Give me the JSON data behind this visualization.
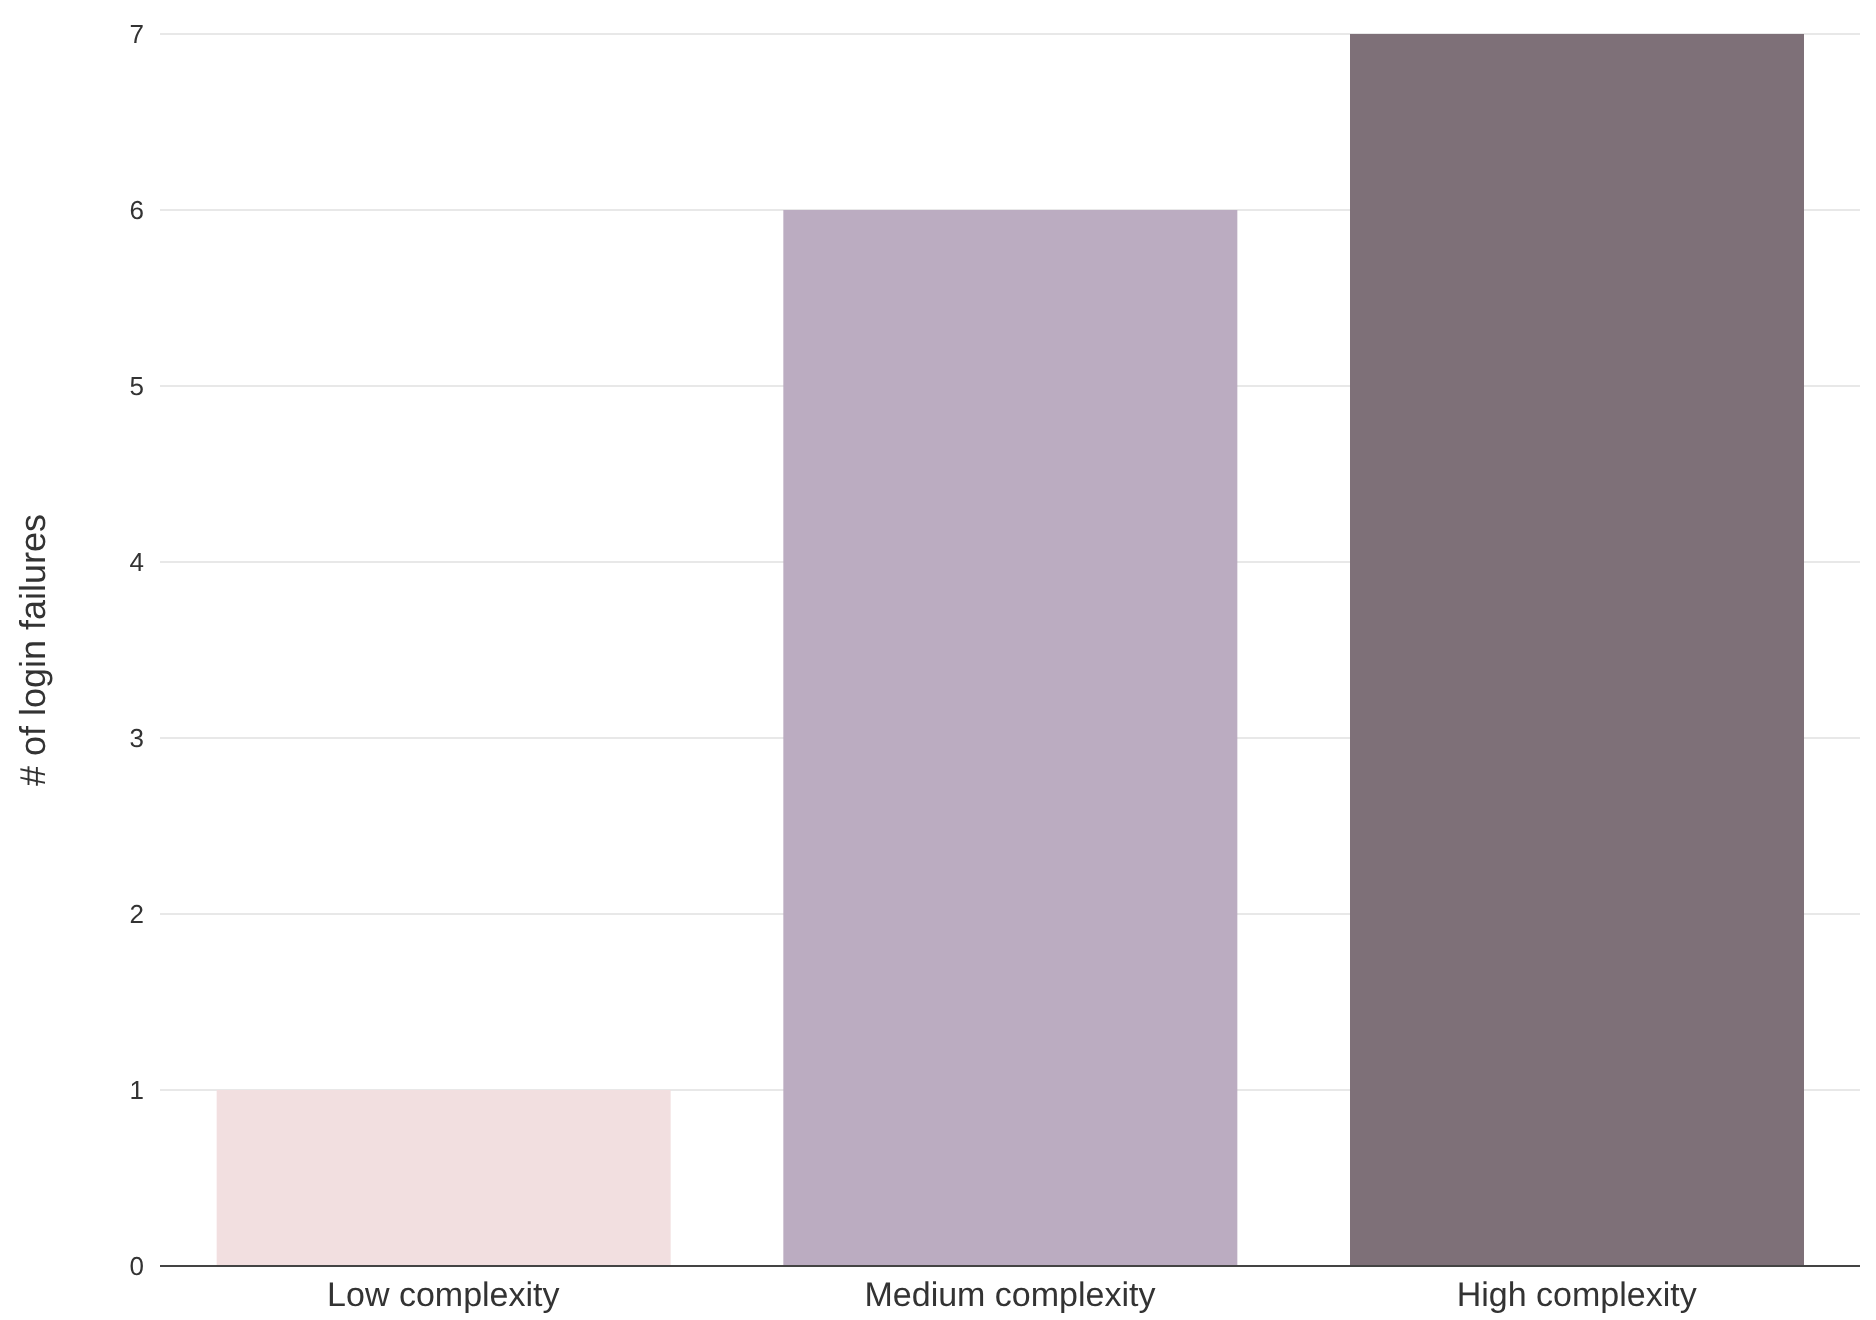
{
  "chart_data": {
    "type": "bar",
    "ylabel": "# of login failures",
    "categories": [
      "Low complexity",
      "Medium complexity",
      "High complexity"
    ],
    "values": [
      1,
      6,
      7
    ],
    "colors": [
      "#f2dfe0",
      "#bbacc1",
      "#7e7078"
    ],
    "ylim": [
      0,
      7
    ],
    "yticks": [
      0,
      1,
      2,
      3,
      4,
      5,
      6,
      7
    ],
    "grid": "y",
    "legend": false
  }
}
